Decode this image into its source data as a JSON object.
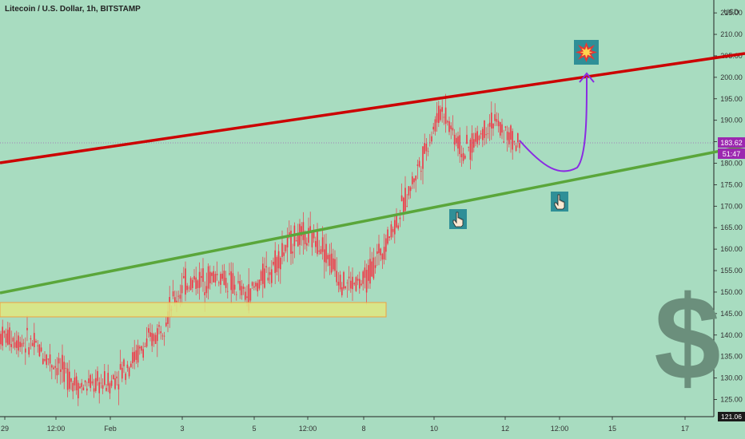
{
  "header": {
    "title": "Litecoin / U.S. Dollar, 1h, BITSTAMP"
  },
  "axis": {
    "currency_label": "USD",
    "y_ticks": [
      "125.00",
      "130.00",
      "135.00",
      "140.00",
      "145.00",
      "150.00",
      "155.00",
      "160.00",
      "165.00",
      "170.00",
      "175.00",
      "180.00",
      "185.00",
      "190.00",
      "195.00",
      "200.00",
      "205.00",
      "210.00",
      "215.00"
    ],
    "x_ticks": [
      "29",
      "12:00",
      "Feb",
      "3",
      "5",
      "12:00",
      "8",
      "10",
      "12",
      "12:00",
      "15",
      "17"
    ],
    "corner_label": "121.06"
  },
  "price_badge": {
    "price": "183.62",
    "countdown": "51:47",
    "color": "#9c27b0"
  },
  "colors": {
    "background": "#a8dcc0",
    "up_candle": "#f23645",
    "down_candle": "#f23645",
    "resistance": "#cc0000",
    "support": "#5aa63a",
    "zone_fill": "#dfe880",
    "zone_border": "#f0a040",
    "projection": "#8a2be2",
    "dollar_sign": "#6b8f7c"
  },
  "icons": {
    "explosion": "collision-icon",
    "pointer_1": "pointing-hand-icon",
    "pointer_2": "pointing-hand-icon",
    "dollar": "dollar-sign-icon"
  },
  "chart_data": {
    "type": "candlestick",
    "symbol": "LTC/USD",
    "timeframe": "1h",
    "exchange": "BITSTAMP",
    "ylim": [
      121,
      218
    ],
    "x": [
      "Jan 29",
      "Jan 29 12:00",
      "Feb 1",
      "Feb 3",
      "Feb 5",
      "Feb 5 12:00",
      "Feb 8",
      "Feb 10",
      "Feb 12",
      "Feb 12 12:00",
      "Feb 15",
      "Feb 17"
    ],
    "close_path": [
      {
        "date": "Jan 29",
        "price": 140
      },
      {
        "date": "Jan 29 12:00",
        "price": 138
      },
      {
        "date": "Jan 30",
        "price": 133
      },
      {
        "date": "Jan 31",
        "price": 128
      },
      {
        "date": "Feb 1",
        "price": 129
      },
      {
        "date": "Feb 2",
        "price": 140
      },
      {
        "date": "Feb 3",
        "price": 152
      },
      {
        "date": "Feb 4",
        "price": 154
      },
      {
        "date": "Feb 5",
        "price": 149
      },
      {
        "date": "Feb 5 12:00",
        "price": 163
      },
      {
        "date": "Feb 6",
        "price": 162
      },
      {
        "date": "Feb 7",
        "price": 152
      },
      {
        "date": "Feb 8",
        "price": 152
      },
      {
        "date": "Feb 9",
        "price": 168
      },
      {
        "date": "Feb 10",
        "price": 193
      },
      {
        "date": "Feb 11",
        "price": 182
      },
      {
        "date": "Feb 11 12:00",
        "price": 190
      },
      {
        "date": "Feb 12",
        "price": 183.62
      }
    ],
    "last_price": 183.62,
    "annotations": {
      "resistance_line": {
        "from": {
          "date": "Jan 29",
          "price": 179
        },
        "to": {
          "date": "Feb 17",
          "price": 204
        }
      },
      "support_line": {
        "from": {
          "date": "Jan 29",
          "price": 149
        },
        "to": {
          "date": "Feb 17",
          "price": 180
        }
      },
      "zone": {
        "from_date": "Jan 29",
        "to_date": "Feb 8",
        "low": 145,
        "high": 148
      },
      "projection_curve": {
        "from": {
          "date": "Feb 12",
          "price": 183
        },
        "low": {
          "date": "Feb 12 12:00",
          "price": 176
        },
        "to": {
          "date": "Feb 14",
          "price": 200
        }
      }
    }
  }
}
